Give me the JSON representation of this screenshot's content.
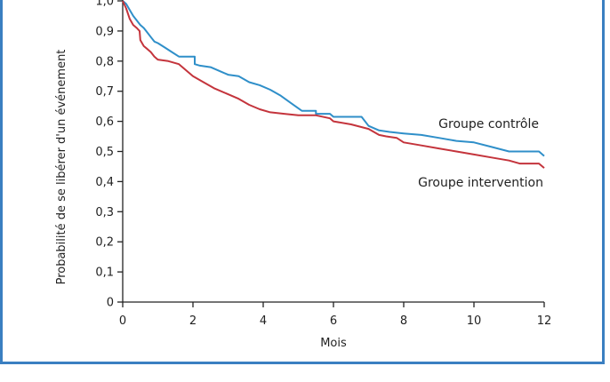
{
  "chart_data": {
    "type": "line",
    "title": "",
    "xlabel": "Mois",
    "ylabel": "Probabilité de se libérer d'un événement",
    "xlim": [
      0,
      12
    ],
    "ylim": [
      0,
      1.0
    ],
    "x_ticks": [
      "0",
      "2",
      "4",
      "6",
      "8",
      "10",
      "12"
    ],
    "y_ticks": [
      "0",
      "0,1",
      "0,2",
      "0,3",
      "0,4",
      "0,5",
      "0,6",
      "0,7",
      "0,8",
      "0,9",
      "1,0"
    ],
    "grid": false,
    "series": [
      {
        "name": "Groupe contrôle",
        "color": "#2f8fc9",
        "points": [
          [
            0,
            1.0
          ],
          [
            0.1,
            0.99
          ],
          [
            0.2,
            0.97
          ],
          [
            0.3,
            0.95
          ],
          [
            0.4,
            0.935
          ],
          [
            0.5,
            0.92
          ],
          [
            0.6,
            0.91
          ],
          [
            0.7,
            0.895
          ],
          [
            0.8,
            0.88
          ],
          [
            0.9,
            0.865
          ],
          [
            1.0,
            0.86
          ],
          [
            1.2,
            0.845
          ],
          [
            1.4,
            0.83
          ],
          [
            1.6,
            0.815
          ],
          [
            1.8,
            0.815
          ],
          [
            2.05,
            0.815
          ],
          [
            2.05,
            0.79
          ],
          [
            2.2,
            0.785
          ],
          [
            2.5,
            0.78
          ],
          [
            2.8,
            0.765
          ],
          [
            3.0,
            0.755
          ],
          [
            3.3,
            0.75
          ],
          [
            3.6,
            0.73
          ],
          [
            3.9,
            0.72
          ],
          [
            4.2,
            0.705
          ],
          [
            4.5,
            0.685
          ],
          [
            4.8,
            0.66
          ],
          [
            5.1,
            0.635
          ],
          [
            5.5,
            0.635
          ],
          [
            5.5,
            0.625
          ],
          [
            5.9,
            0.625
          ],
          [
            6.0,
            0.615
          ],
          [
            6.3,
            0.615
          ],
          [
            6.8,
            0.615
          ],
          [
            7.0,
            0.585
          ],
          [
            7.3,
            0.57
          ],
          [
            7.6,
            0.565
          ],
          [
            8.0,
            0.56
          ],
          [
            8.5,
            0.555
          ],
          [
            9.0,
            0.545
          ],
          [
            9.5,
            0.535
          ],
          [
            10.0,
            0.53
          ],
          [
            10.5,
            0.515
          ],
          [
            11.0,
            0.5
          ],
          [
            11.5,
            0.5
          ],
          [
            11.85,
            0.5
          ],
          [
            12.0,
            0.485
          ]
        ]
      },
      {
        "name": "Groupe intervention",
        "color": "#c4343c",
        "points": [
          [
            0,
            1.0
          ],
          [
            0.1,
            0.975
          ],
          [
            0.2,
            0.94
          ],
          [
            0.3,
            0.92
          ],
          [
            0.4,
            0.91
          ],
          [
            0.48,
            0.9
          ],
          [
            0.5,
            0.87
          ],
          [
            0.6,
            0.85
          ],
          [
            0.7,
            0.84
          ],
          [
            0.8,
            0.83
          ],
          [
            0.9,
            0.815
          ],
          [
            1.0,
            0.805
          ],
          [
            1.3,
            0.8
          ],
          [
            1.6,
            0.79
          ],
          [
            1.8,
            0.77
          ],
          [
            2.0,
            0.75
          ],
          [
            2.3,
            0.73
          ],
          [
            2.6,
            0.71
          ],
          [
            3.0,
            0.69
          ],
          [
            3.3,
            0.675
          ],
          [
            3.6,
            0.655
          ],
          [
            3.9,
            0.64
          ],
          [
            4.2,
            0.63
          ],
          [
            4.6,
            0.625
          ],
          [
            5.0,
            0.62
          ],
          [
            5.5,
            0.62
          ],
          [
            5.9,
            0.61
          ],
          [
            6.0,
            0.6
          ],
          [
            6.5,
            0.59
          ],
          [
            7.0,
            0.575
          ],
          [
            7.3,
            0.555
          ],
          [
            7.5,
            0.55
          ],
          [
            7.8,
            0.545
          ],
          [
            8.0,
            0.53
          ],
          [
            8.5,
            0.52
          ],
          [
            9.0,
            0.51
          ],
          [
            9.5,
            0.5
          ],
          [
            10.0,
            0.49
          ],
          [
            10.5,
            0.48
          ],
          [
            11.0,
            0.47
          ],
          [
            11.3,
            0.46
          ],
          [
            11.85,
            0.46
          ],
          [
            12.0,
            0.445
          ]
        ]
      }
    ],
    "annotations": [
      {
        "text": "Groupe contrôle",
        "series": 0
      },
      {
        "text": "Groupe intervention",
        "series": 1
      }
    ]
  }
}
